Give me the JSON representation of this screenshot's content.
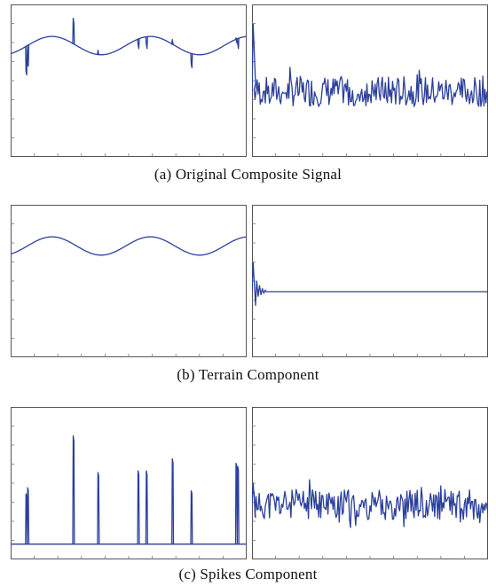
{
  "colors": {
    "line": "#2b3f9c",
    "frame": "#555555"
  },
  "chart_data": [
    {
      "type": "line",
      "caption": "(a) Original Composite Signal",
      "left_panel": {
        "baseline": 0.73,
        "amplitude": 0.06,
        "periods": 2.4,
        "phase": 0.5,
        "spikes": [
          {
            "x": 0.065,
            "height": 0.56
          },
          {
            "x": 0.072,
            "height": 0.62
          },
          {
            "x": 0.265,
            "height": 0.91
          },
          {
            "x": 0.37,
            "height": 0.7
          },
          {
            "x": 0.54,
            "height": 0.74
          },
          {
            "x": 0.575,
            "height": 0.74
          },
          {
            "x": 0.685,
            "height": 0.77
          },
          {
            "x": 0.765,
            "height": 0.61
          },
          {
            "x": 0.955,
            "height": 0.78
          },
          {
            "x": 0.962,
            "height": 0.74
          }
        ]
      },
      "right_panel": {
        "initial_peak": 0.87,
        "noise_level": 0.43,
        "noise_spread": 0.1,
        "seed": 7
      }
    },
    {
      "type": "line",
      "caption": "(b) Terrain Component",
      "left_panel": {
        "baseline": 0.73,
        "amplitude": 0.06,
        "periods": 2.4,
        "phase": 0.5,
        "spikes": []
      },
      "right_panel": {
        "initial_peak": 0.62,
        "flat_level": 0.43,
        "flat_from": 0.06,
        "seed": 3
      }
    },
    {
      "type": "line",
      "caption": "(c) Spikes Component",
      "left_panel": {
        "flat": 0.1,
        "spikes": [
          {
            "x": 0.065,
            "height": 0.43
          },
          {
            "x": 0.072,
            "height": 0.47
          },
          {
            "x": 0.265,
            "height": 0.81
          },
          {
            "x": 0.37,
            "height": 0.57
          },
          {
            "x": 0.54,
            "height": 0.58
          },
          {
            "x": 0.575,
            "height": 0.58
          },
          {
            "x": 0.685,
            "height": 0.66
          },
          {
            "x": 0.765,
            "height": 0.45
          },
          {
            "x": 0.955,
            "height": 0.63
          },
          {
            "x": 0.962,
            "height": 0.61
          }
        ]
      },
      "right_panel": {
        "initial_peak": 0.5,
        "noise_level": 0.36,
        "noise_spread": 0.1,
        "seed": 11
      }
    }
  ]
}
